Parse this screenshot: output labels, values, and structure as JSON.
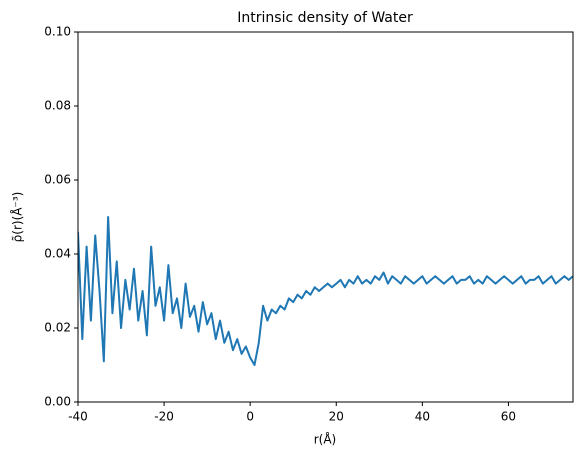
{
  "chart_data": {
    "type": "line",
    "title": "Intrinsic density of Water",
    "xlabel": "r(Å)",
    "ylabel": "ρ̃(r)(Å⁻³)",
    "x": [
      -40,
      -39,
      -38,
      -37,
      -36,
      -35,
      -34,
      -33,
      -32,
      -31,
      -30,
      -29,
      -28,
      -27,
      -26,
      -25,
      -24,
      -23,
      -22,
      -21,
      -20,
      -19,
      -18,
      -17,
      -16,
      -15,
      -14,
      -13,
      -12,
      -11,
      -10,
      -9,
      -8,
      -7,
      -6,
      -5,
      -4,
      -3,
      -2,
      -1,
      0,
      1,
      2,
      3,
      4,
      5,
      6,
      7,
      8,
      9,
      10,
      11,
      12,
      13,
      14,
      15,
      16,
      17,
      18,
      19,
      20,
      21,
      22,
      23,
      24,
      25,
      26,
      27,
      28,
      29,
      30,
      31,
      32,
      33,
      34,
      35,
      36,
      37,
      38,
      39,
      40,
      41,
      42,
      43,
      44,
      45,
      46,
      47,
      48,
      49,
      50,
      51,
      52,
      53,
      54,
      55,
      56,
      57,
      58,
      59,
      60,
      61,
      62,
      63,
      64,
      65,
      66,
      67,
      68,
      69,
      70,
      71,
      72,
      73,
      74,
      75
    ],
    "series": [
      {
        "name": "Water",
        "color": "#1f77b4",
        "values": [
          0.046,
          0.017,
          0.042,
          0.022,
          0.045,
          0.03,
          0.011,
          0.05,
          0.024,
          0.038,
          0.02,
          0.033,
          0.025,
          0.036,
          0.022,
          0.03,
          0.018,
          0.042,
          0.026,
          0.031,
          0.022,
          0.037,
          0.024,
          0.028,
          0.02,
          0.032,
          0.023,
          0.026,
          0.019,
          0.027,
          0.021,
          0.024,
          0.017,
          0.022,
          0.016,
          0.019,
          0.014,
          0.017,
          0.013,
          0.015,
          0.012,
          0.01,
          0.016,
          0.026,
          0.022,
          0.025,
          0.024,
          0.026,
          0.025,
          0.028,
          0.027,
          0.029,
          0.028,
          0.03,
          0.029,
          0.031,
          0.03,
          0.031,
          0.032,
          0.031,
          0.032,
          0.033,
          0.031,
          0.033,
          0.032,
          0.034,
          0.032,
          0.033,
          0.032,
          0.034,
          0.033,
          0.035,
          0.032,
          0.034,
          0.033,
          0.032,
          0.034,
          0.033,
          0.032,
          0.033,
          0.034,
          0.032,
          0.033,
          0.034,
          0.033,
          0.032,
          0.033,
          0.034,
          0.032,
          0.033,
          0.033,
          0.034,
          0.032,
          0.033,
          0.032,
          0.034,
          0.033,
          0.032,
          0.033,
          0.034,
          0.033,
          0.032,
          0.033,
          0.034,
          0.032,
          0.033,
          0.033,
          0.034,
          0.032,
          0.033,
          0.034,
          0.032,
          0.033,
          0.034,
          0.033,
          0.034
        ]
      }
    ],
    "xlim": [
      -40,
      75
    ],
    "xticks": [
      -40,
      -20,
      0,
      20,
      40,
      60
    ],
    "ylim": [
      0,
      0.1
    ],
    "yticks": [
      {
        "value": 0,
        "label": "0.00"
      },
      {
        "value": 0.02,
        "label": "0.02"
      },
      {
        "value": 0.04,
        "label": "0.04"
      },
      {
        "value": 0.06,
        "label": "0.06"
      },
      {
        "value": 0.08,
        "label": "0.08"
      },
      {
        "value": 0.1,
        "label": "0.10"
      }
    ],
    "grid": false
  }
}
